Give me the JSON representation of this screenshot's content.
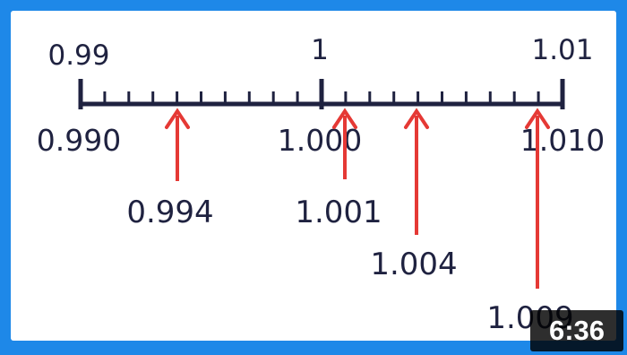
{
  "number_line": {
    "top_labels": [
      "0.99",
      "1",
      "1.01"
    ],
    "bottom_labels": [
      "0.990",
      "1.000",
      "1.010"
    ],
    "start": 0.99,
    "end": 1.01,
    "minor_step": 0.001
  },
  "markers": [
    {
      "value": 0.994,
      "label": "0.994"
    },
    {
      "value": 1.001,
      "label": "1.001"
    },
    {
      "value": 1.004,
      "label": "1.004"
    },
    {
      "value": 1.009,
      "label": "1.009"
    }
  ],
  "colors": {
    "line": "#1f2240",
    "arrow": "#e53935",
    "frame": "#1e88e8"
  },
  "video": {
    "duration": "6:36"
  }
}
